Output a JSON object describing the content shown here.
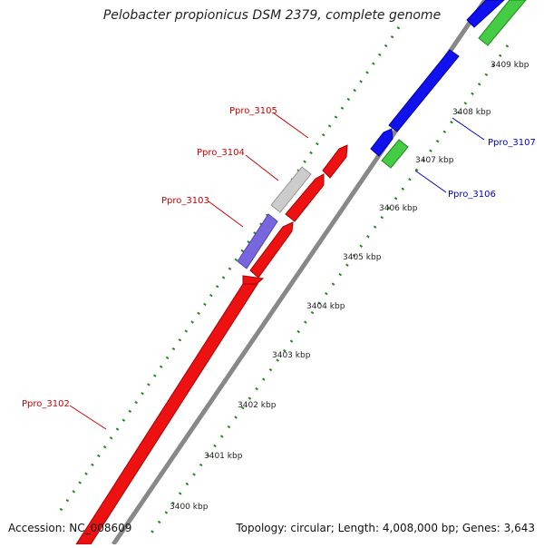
{
  "title": "Pelobacter propionicus DSM 2379, complete genome",
  "footer": {
    "accession": "Accession: NC_008609",
    "summary": "Topology: circular; Length: 4,008,000 bp; Genes: 3,643"
  },
  "ticks": [
    {
      "label": "3400 kbp"
    },
    {
      "label": "3401 kbp"
    },
    {
      "label": "3402 kbp"
    },
    {
      "label": "3403 kbp"
    },
    {
      "label": "3404 kbp"
    },
    {
      "label": "3405 kbp"
    },
    {
      "label": "3406 kbp"
    },
    {
      "label": "3407 kbp"
    },
    {
      "label": "3408 kbp"
    },
    {
      "label": "3409 kbp"
    }
  ],
  "genes": [
    {
      "name": "Ppro_3102",
      "color": "#dd0000"
    },
    {
      "name": "Ppro_3103",
      "color": "#dd0000"
    },
    {
      "name": "Ppro_3104",
      "color": "#dd0000"
    },
    {
      "name": "Ppro_3105",
      "color": "#dd0000"
    },
    {
      "name": "Ppro_3106",
      "color": "#0000cc"
    },
    {
      "name": "Ppro_3107",
      "color": "#0000cc"
    }
  ],
  "colors": {
    "backbone": "#888888",
    "forward_gene": "#ff0000",
    "reverse_gene": "#0000ff",
    "green_feature": "#33bb33",
    "purple_feature": "#7766dd",
    "grey_feature": "#cccccc",
    "dotted_track": "#228822"
  }
}
